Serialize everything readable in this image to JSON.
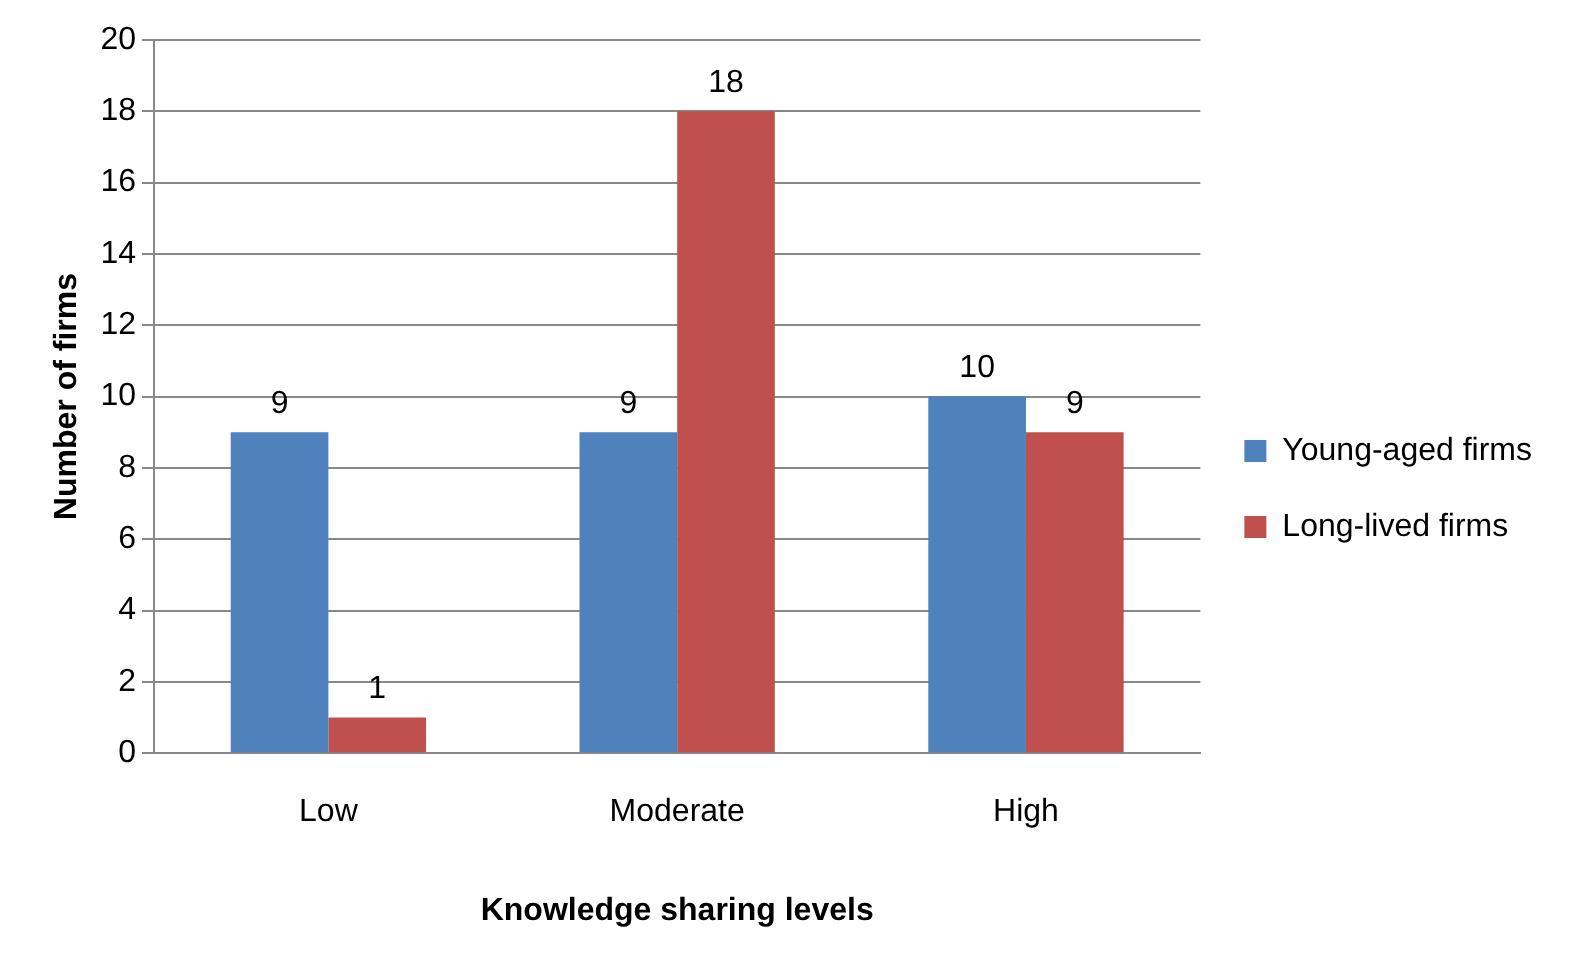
{
  "chart_data": {
    "type": "bar",
    "xlabel": "Knowledge sharing levels",
    "ylabel": "Number of firms",
    "categories": [
      "Low",
      "Moderate",
      "High"
    ],
    "series": [
      {
        "name": "Young-aged firms",
        "color": "#4f81bd",
        "values": [
          9,
          9,
          10
        ]
      },
      {
        "name": "Long-lived firms",
        "color": "#c0504d",
        "values": [
          1,
          18,
          9
        ]
      }
    ],
    "ylim": [
      0,
      20
    ],
    "yticks": [
      0,
      2,
      4,
      6,
      8,
      10,
      12,
      14,
      16,
      18,
      20
    ],
    "grid": "y",
    "legend": "right",
    "data_labels": true
  }
}
